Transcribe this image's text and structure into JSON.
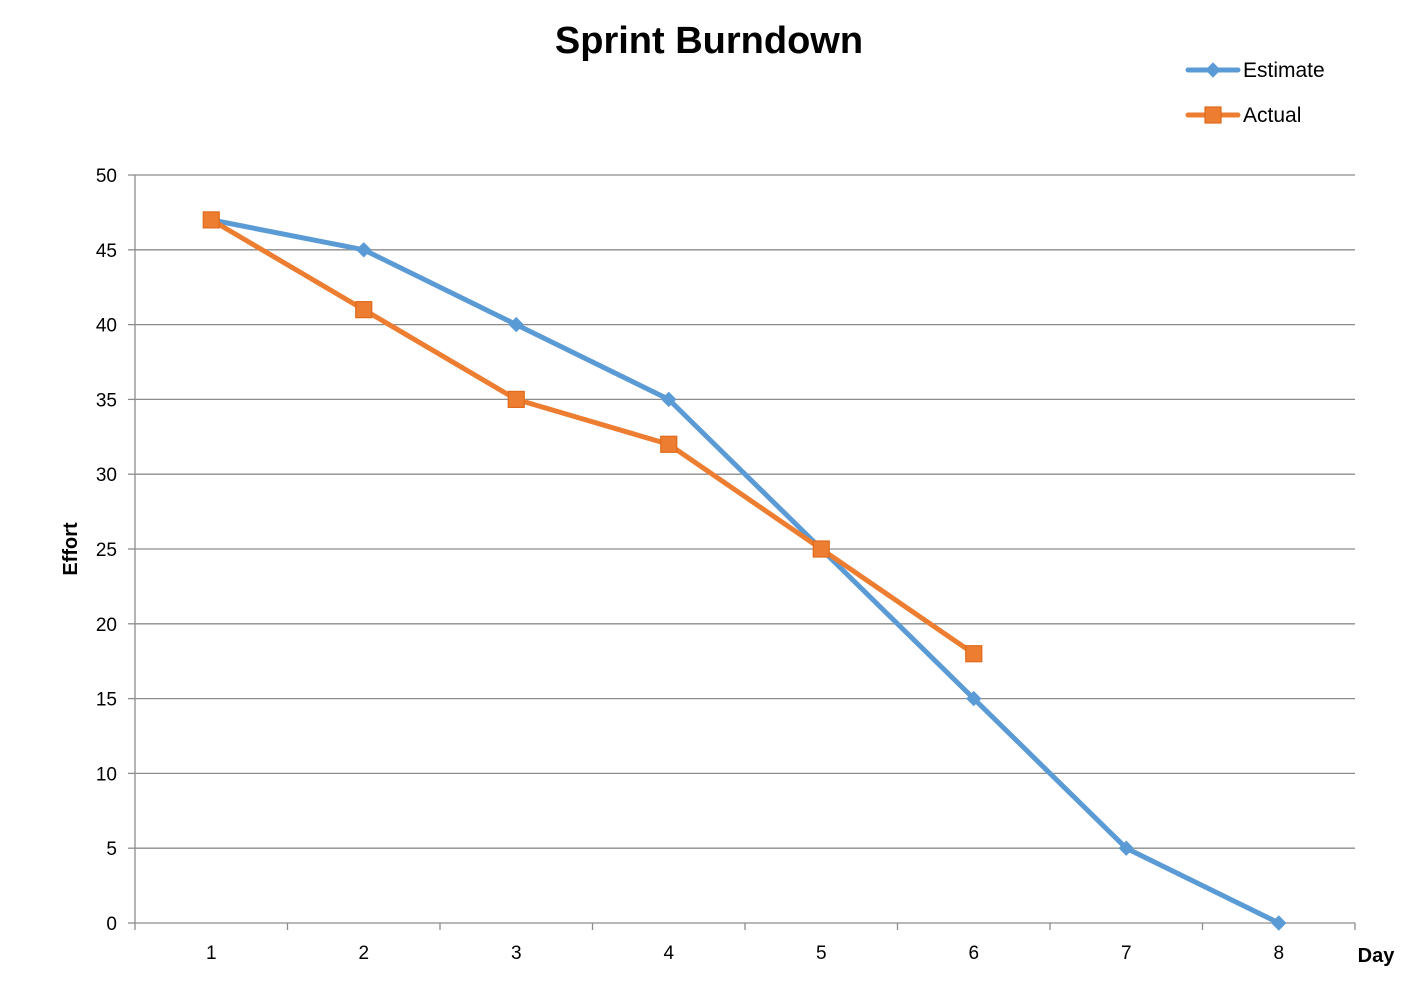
{
  "chart_data": {
    "type": "line",
    "title": "Sprint Burndown",
    "xlabel": "Day",
    "ylabel": "Effort",
    "categories": [
      "1",
      "2",
      "3",
      "4",
      "5",
      "6",
      "7",
      "8"
    ],
    "ylim": [
      0,
      50
    ],
    "yticks": [
      0,
      5,
      10,
      15,
      20,
      25,
      30,
      35,
      40,
      45,
      50
    ],
    "grid": true,
    "legend_position": "top-right",
    "series": [
      {
        "name": "Estimate",
        "values": [
          47,
          45,
          40,
          35,
          25,
          15,
          5,
          0
        ],
        "color": "#5b9bd5",
        "marker": "diamond"
      },
      {
        "name": "Actual",
        "values": [
          47,
          41,
          35,
          32,
          25,
          18,
          null,
          null
        ],
        "color": "#ed7d31",
        "marker": "square"
      }
    ]
  }
}
